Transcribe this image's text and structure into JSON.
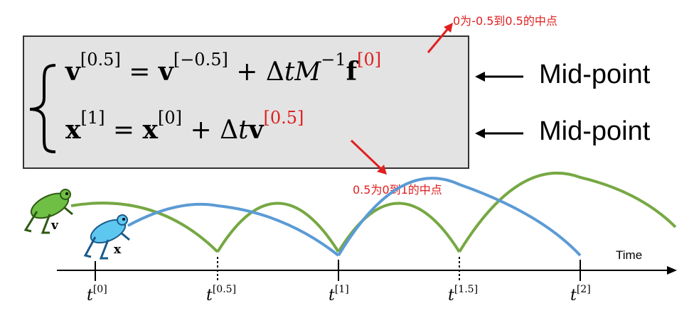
{
  "equations": {
    "line1": {
      "lhs_var": "v",
      "lhs_sup": "[0.5]",
      "eq": "=",
      "rhs_var": "v",
      "rhs_sup": "[−0.5]",
      "plus": "+",
      "delta_t": "Δ",
      "t": "t",
      "M": "M",
      "M_sup": "−1",
      "f": "f",
      "f_sup": "[0]"
    },
    "line2": {
      "lhs_var": "x",
      "lhs_sup": "[1]",
      "eq": "=",
      "rhs_var": "x",
      "rhs_sup": "[0]",
      "plus": "+",
      "delta_t": "Δ",
      "t": "t",
      "v": "v",
      "v_sup": "[0.5]"
    }
  },
  "annotations": {
    "top": "0为-0.5到0.5的中点",
    "bottom": "0.5为0到1的中点"
  },
  "right_labels": [
    "Mid-point",
    "Mid-point"
  ],
  "timeline": {
    "axis_title": "Time",
    "ticks": [
      {
        "t": "t",
        "sup": "[0]"
      },
      {
        "t": "t",
        "sup": "[0.5]"
      },
      {
        "t": "t",
        "sup": "[1]"
      },
      {
        "t": "t",
        "sup": "[1.5]"
      },
      {
        "t": "t",
        "sup": "[2]"
      }
    ]
  },
  "frogs": {
    "green_label": "v",
    "blue_label": "x"
  },
  "colors": {
    "green_arc": "#76a843",
    "blue_arc": "#5b9bd5",
    "red": "#e02020",
    "box_bg": "#e3e3e3"
  }
}
